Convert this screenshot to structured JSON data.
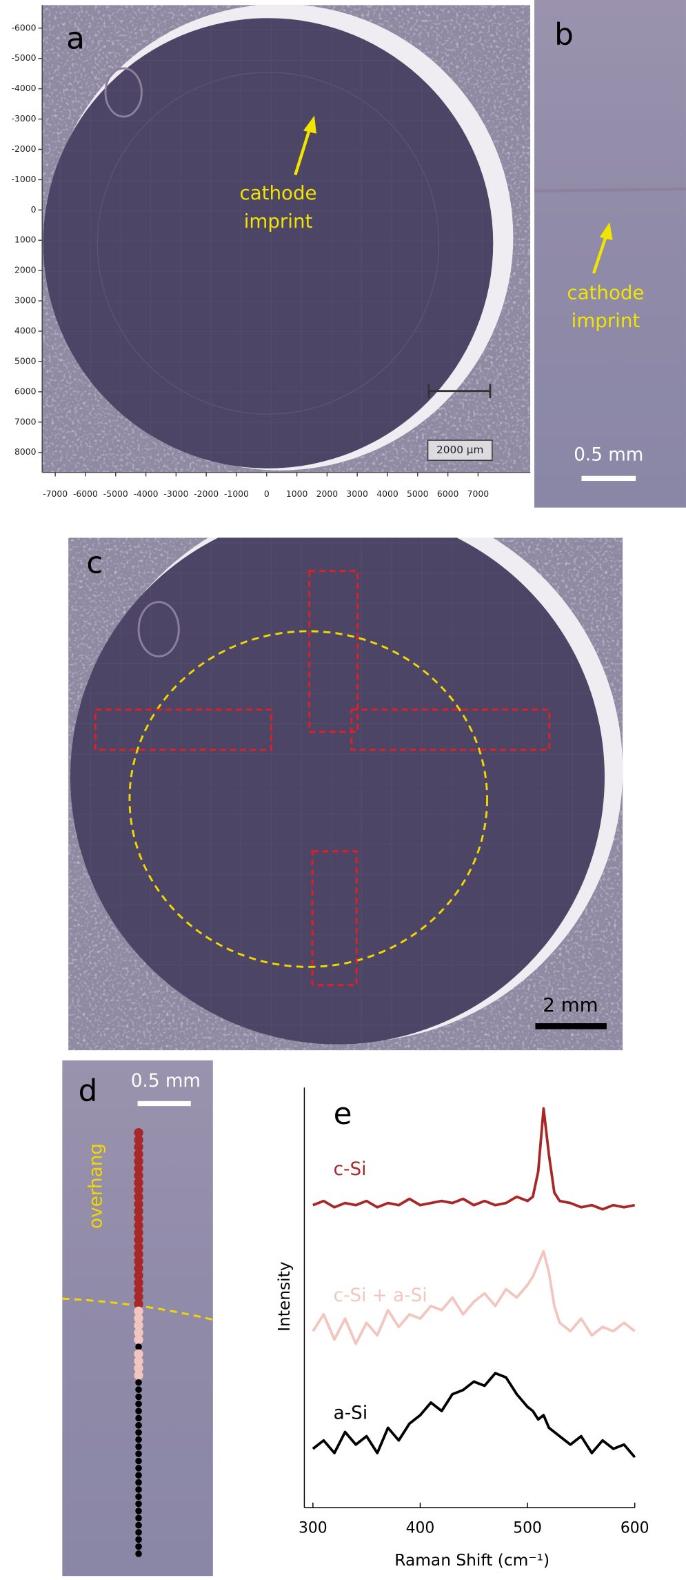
{
  "panels": {
    "a": {
      "label": "a",
      "annotation": [
        "cathode",
        "imprint"
      ],
      "scale_bar": "2000 µm",
      "yticks": [
        -6000,
        -5000,
        -4000,
        -3000,
        -2000,
        -1000,
        0,
        1000,
        2000,
        3000,
        4000,
        5000,
        6000,
        7000,
        8000
      ],
      "xticks": [
        -7000,
        -6000,
        -5000,
        -4000,
        -3000,
        -2000,
        -1000,
        0,
        1000,
        2000,
        3000,
        4000,
        5000,
        6000,
        7000
      ]
    },
    "b": {
      "label": "b",
      "annotation": [
        "cathode",
        "imprint"
      ],
      "scale_bar": "0.5 mm"
    },
    "c": {
      "label": "c",
      "scale_bar": "2 mm"
    },
    "d": {
      "label": "d",
      "scale_bar": "0.5 mm",
      "annotation": "overhang"
    }
  },
  "chart_data": {
    "type": "line",
    "panel_label": "e",
    "x_label": "Raman Shift (cm⁻¹)",
    "y_label": "Intensity",
    "x": [
      300,
      310,
      320,
      330,
      340,
      350,
      360,
      370,
      380,
      390,
      400,
      410,
      420,
      430,
      440,
      450,
      460,
      470,
      480,
      490,
      500,
      505,
      510,
      515,
      520,
      525,
      530,
      540,
      550,
      560,
      570,
      580,
      590,
      600
    ],
    "xlim": [
      292,
      600
    ],
    "xticks": [
      300,
      400,
      500,
      600
    ],
    "ylim": [
      0,
      100
    ],
    "series": [
      {
        "name": "c-Si",
        "color": "#a8282a",
        "values": [
          72,
          73,
          71.5,
          72.5,
          72,
          73,
          71.5,
          72.5,
          72,
          73.5,
          72,
          72.5,
          73,
          72.5,
          73.5,
          72,
          73,
          72,
          72.5,
          74,
          73,
          74,
          80,
          95,
          84,
          75,
          73,
          72.5,
          71.5,
          72,
          71,
          72,
          71.5,
          72
        ]
      },
      {
        "name": "c-Si + a-Si",
        "color": "#f2c6be",
        "values": [
          42,
          46,
          40,
          45,
          39,
          44,
          41,
          47,
          43,
          46,
          45,
          48,
          47,
          50,
          46,
          49,
          51,
          48,
          52,
          50,
          53,
          55,
          58,
          61,
          56,
          48,
          44,
          42,
          45,
          41,
          43,
          42,
          44,
          42
        ]
      },
      {
        "name": "a-Si",
        "color": "#000000",
        "values": [
          14,
          16,
          13,
          18,
          15,
          17,
          13,
          19,
          16,
          20,
          22,
          25,
          23,
          27,
          28,
          30,
          29,
          32,
          31,
          27,
          24,
          23,
          21,
          22,
          19,
          18,
          17,
          15,
          17,
          13,
          16,
          14,
          15,
          12
        ]
      }
    ]
  }
}
